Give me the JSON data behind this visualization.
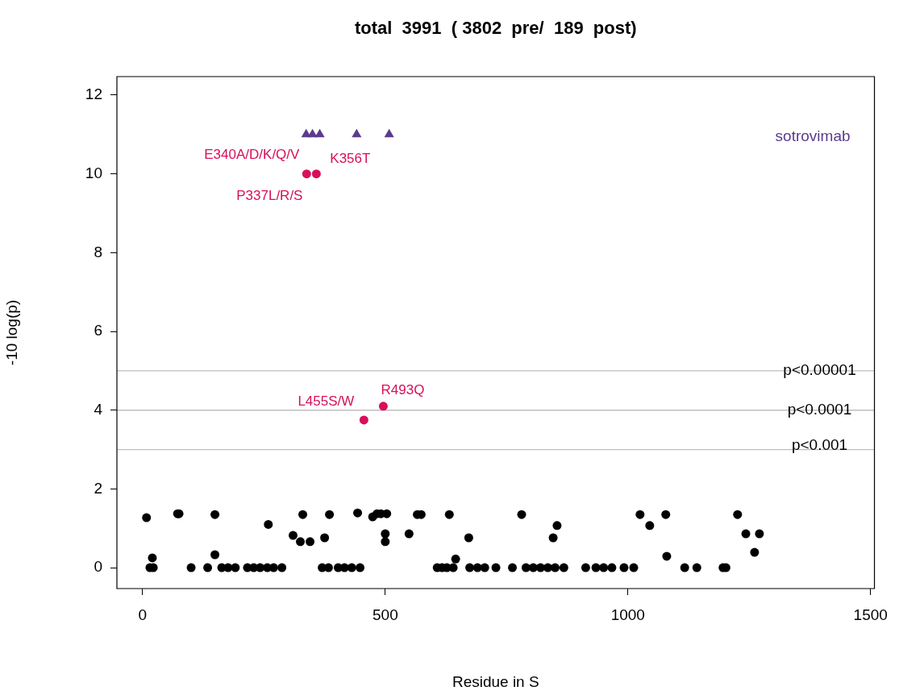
{
  "chart_data": {
    "type": "scatter",
    "title": "total  3991  ( 3802  pre/  189  post)",
    "xlabel": "Residue in S",
    "ylabel": "-10 log(p)",
    "xlim": [
      -53,
      1508
    ],
    "ylim": [
      -0.53,
      12.47
    ],
    "xticks": [
      0,
      500,
      1000,
      1500
    ],
    "yticks": [
      0,
      2,
      4,
      6,
      8,
      10,
      12
    ],
    "grid": false,
    "legend": "top right",
    "series": [
      {
        "color": "#000000",
        "marker": "circle",
        "x": [
          8,
          15,
          22,
          20,
          72,
          75,
          100,
          149,
          149,
          134,
          163,
          176,
          191,
          216,
          229,
          242,
          257,
          270,
          287,
          259,
          310,
          325,
          345,
          330,
          375,
          385,
          370,
          383,
          403,
          416,
          431,
          448,
          443,
          474,
          483,
          491,
          503,
          500,
          500,
          549,
          566,
          574,
          607,
          617,
          627,
          640,
          645,
          632,
          672,
          674,
          690,
          705,
          728,
          762,
          781,
          790,
          805,
          820,
          835,
          846,
          850,
          854,
          868,
          913,
          934,
          950,
          967,
          992,
          1012,
          1025,
          1045,
          1078,
          1080,
          1117,
          1142,
          1196,
          1202,
          1226,
          1243,
          1261,
          1271
        ],
        "values": [
          1.27,
          0,
          0,
          0.25,
          1.37,
          1.37,
          0,
          1.35,
          0.33,
          0,
          0,
          0,
          0,
          0,
          0,
          0,
          0,
          0,
          0,
          1.1,
          0.82,
          0.66,
          0.66,
          1.35,
          0.76,
          1.35,
          0,
          0,
          0,
          0,
          0,
          0,
          1.39,
          1.29,
          1.37,
          1.37,
          1.37,
          0.86,
          0.66,
          0.86,
          1.35,
          1.35,
          0,
          0,
          0,
          0,
          0.22,
          1.35,
          0.76,
          0,
          0,
          0,
          0,
          0,
          1.35,
          0,
          0,
          0,
          0,
          0.76,
          0,
          1.07,
          0,
          0,
          0,
          0,
          0,
          0,
          0,
          1.35,
          1.07,
          1.35,
          0.29,
          0,
          0,
          0,
          0,
          1.35,
          0.86,
          0.39,
          0.86
        ]
      },
      {
        "color": "#d6105a",
        "marker": "circle",
        "x": [
          338,
          358,
          456,
          496
        ],
        "values": [
          10,
          10,
          3.75,
          4.1
        ]
      },
      {
        "name": "sotrovimab",
        "color": "#5c3a8c",
        "marker": "triangle",
        "x": [
          337,
          350,
          365,
          441,
          508
        ],
        "values": [
          11,
          11,
          11,
          11,
          11
        ]
      }
    ],
    "ref_lines": [
      {
        "axis": "y",
        "value": 5,
        "label": "p<0.00001",
        "color": "#bebebe"
      },
      {
        "axis": "y",
        "value": 4,
        "label": "p<0.0001",
        "color": "#bebebe"
      },
      {
        "axis": "y",
        "value": 3,
        "label": "p<0.001",
        "color": "#bebebe"
      }
    ],
    "annotations": [
      {
        "text": "E340A/D/K/Q/V",
        "x": 338,
        "y": 10
      },
      {
        "text": "K356T",
        "x": 358,
        "y": 10
      },
      {
        "text": "P337L/R/S",
        "x": 338,
        "y": 10
      },
      {
        "text": "L455S/W",
        "x": 456,
        "y": 3.75
      },
      {
        "text": "R493Q",
        "x": 496,
        "y": 4.1
      }
    ]
  }
}
